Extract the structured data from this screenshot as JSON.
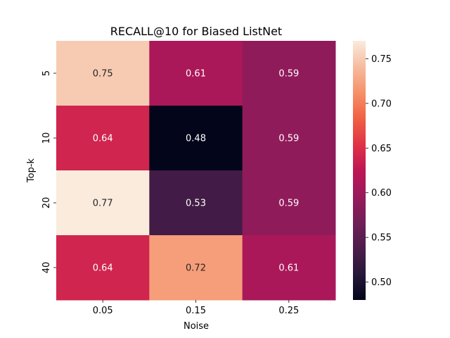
{
  "chart_data": {
    "type": "heatmap",
    "title": "RECALL@10 for Biased ListNet",
    "xlabel": "Noise",
    "ylabel": "Top-k",
    "x_categories": [
      "0.05",
      "0.15",
      "0.25"
    ],
    "y_categories": [
      "5",
      "10",
      "20",
      "40"
    ],
    "values": [
      [
        0.75,
        0.61,
        0.59
      ],
      [
        0.64,
        0.48,
        0.59
      ],
      [
        0.77,
        0.53,
        0.59
      ],
      [
        0.64,
        0.72,
        0.61
      ]
    ],
    "annotations": [
      [
        "0.75",
        "0.61",
        "0.59"
      ],
      [
        "0.64",
        "0.48",
        "0.59"
      ],
      [
        "0.77",
        "0.53",
        "0.59"
      ],
      [
        "0.64",
        "0.72",
        "0.61"
      ]
    ],
    "colorbar": {
      "min": 0.48,
      "max": 0.77,
      "ticks": [
        "0.50",
        "0.55",
        "0.60",
        "0.65",
        "0.70",
        "0.75"
      ],
      "colormap": "rocket"
    }
  }
}
